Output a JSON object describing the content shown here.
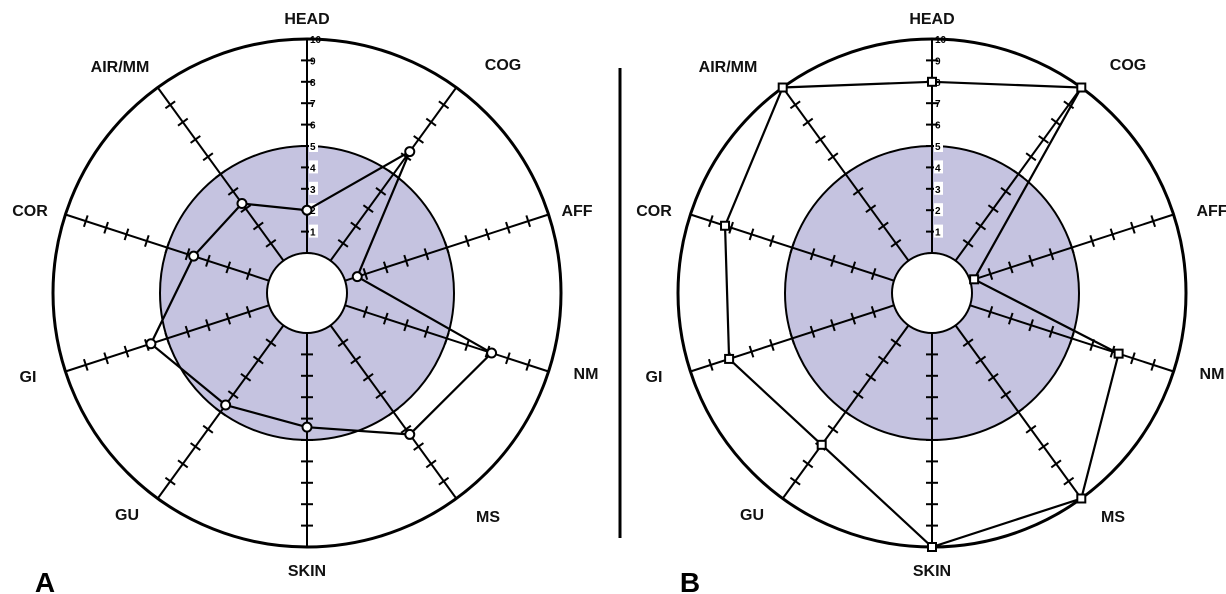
{
  "chart_data": [
    {
      "type": "radar",
      "panel_label": "A",
      "axes": [
        "HEAD",
        "COG",
        "AFF",
        "NM",
        "MS",
        "SKIN",
        "GU",
        "GI",
        "COR",
        "AIR/MM"
      ],
      "scale_ticks": [
        "1",
        "2",
        "3",
        "4",
        "5",
        "6",
        "7",
        "8",
        "9",
        "10"
      ],
      "rmax": 10,
      "shaded_max": 5,
      "values": [
        2,
        6.3,
        0.6,
        7.2,
        6.3,
        4.4,
        4.6,
        5.8,
        3.7,
        3.3
      ],
      "marker": "circle",
      "colors": {
        "shade": "#c5c3e0",
        "line": "#000000"
      }
    },
    {
      "type": "radar",
      "panel_label": "B",
      "axes": [
        "HEAD",
        "COG",
        "AFF",
        "NM",
        "MS",
        "SKIN",
        "GU",
        "GI",
        "COR",
        "AIR/MM"
      ],
      "scale_ticks": [
        "1",
        "2",
        "3",
        "4",
        "5",
        "6",
        "7",
        "8",
        "9",
        "10"
      ],
      "rmax": 10,
      "shaded_max": 5,
      "values": [
        8,
        10,
        0.2,
        7.3,
        10,
        10,
        6.9,
        8.1,
        8.3,
        10
      ],
      "marker": "square",
      "colors": {
        "shade": "#c5c3e0",
        "line": "#000000"
      }
    }
  ]
}
